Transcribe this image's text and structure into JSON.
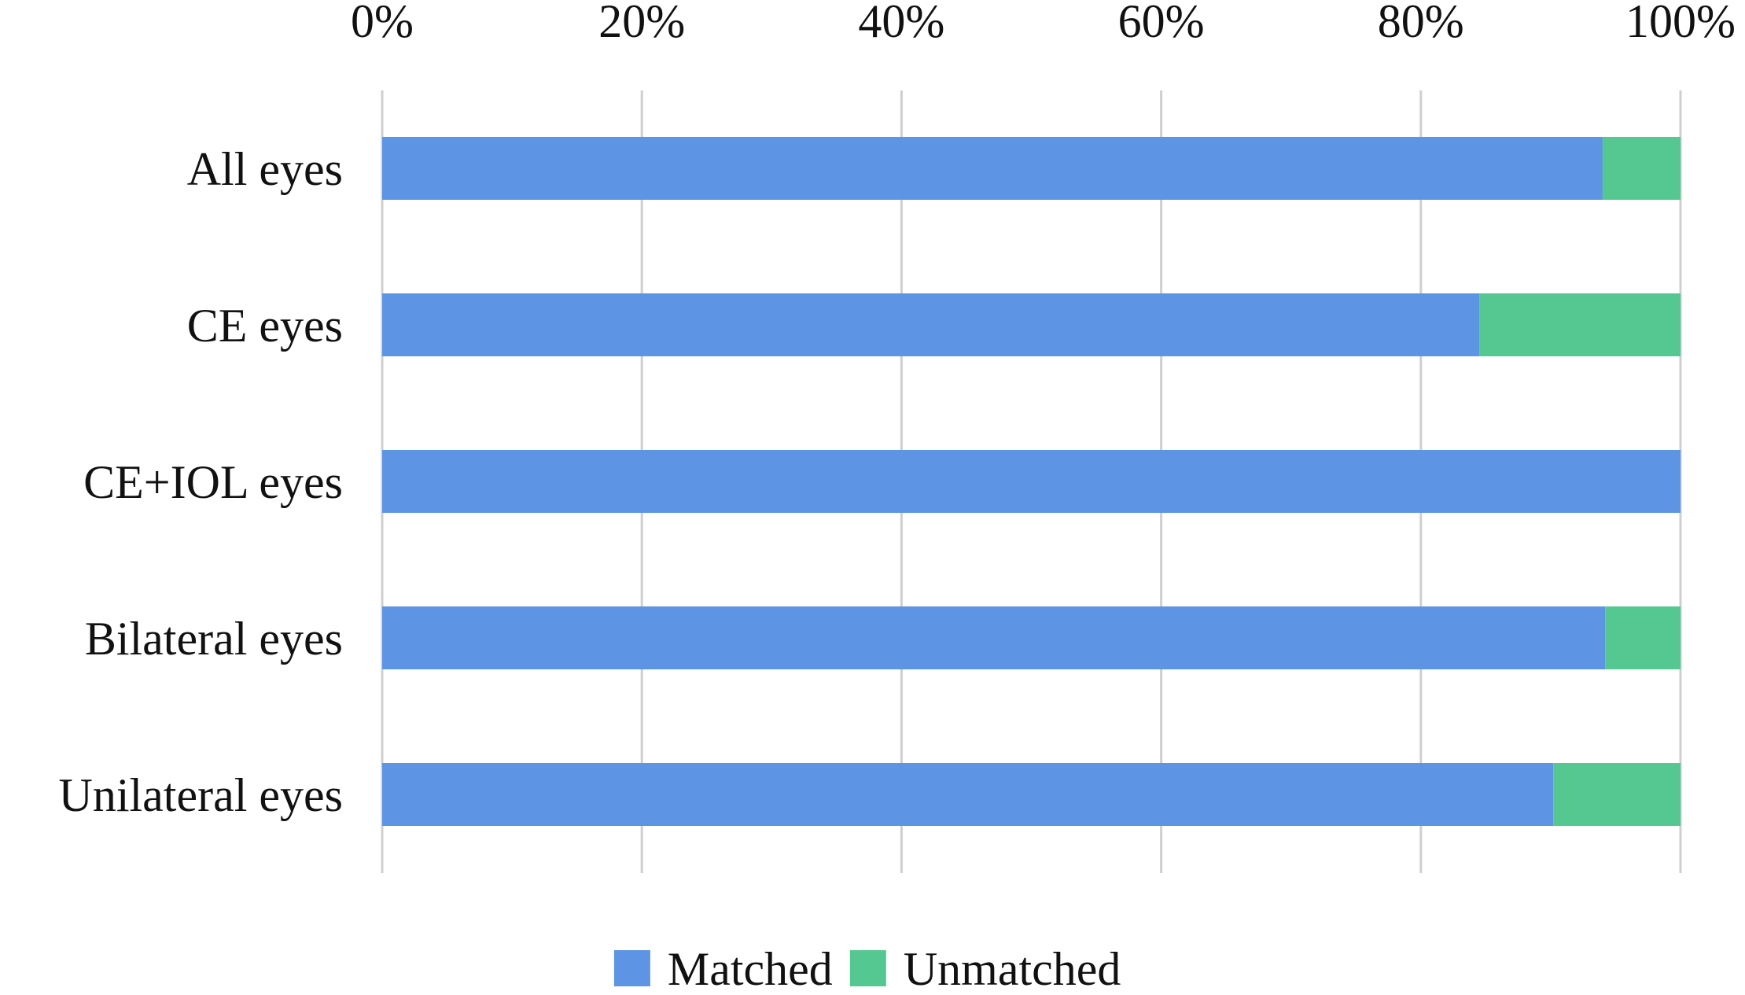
{
  "chart_data": {
    "type": "bar",
    "orientation": "horizontal",
    "stacked": true,
    "percent_stacked": true,
    "title": "",
    "xlabel": "",
    "ylabel": "",
    "xlim": [
      0,
      100
    ],
    "x_ticks": [
      0,
      20,
      40,
      60,
      80,
      100
    ],
    "x_tick_labels": [
      "0%",
      "20%",
      "40%",
      "60%",
      "80%",
      "100%"
    ],
    "x_axis_position": "top",
    "grid": true,
    "grid_axis": "x",
    "legend_position": "bottom",
    "categories": [
      "All eyes",
      "CE eyes",
      "CE+IOL eyes",
      "Bilateral eyes",
      "Unilateral eyes"
    ],
    "series": [
      {
        "name": "Matched",
        "color": "#5e94e4",
        "values": [
          94,
          84.5,
          100,
          94.2,
          90.2
        ]
      },
      {
        "name": "Unmatched",
        "color": "#55c892",
        "values": [
          6,
          15.5,
          0,
          5.8,
          9.8
        ]
      }
    ]
  }
}
